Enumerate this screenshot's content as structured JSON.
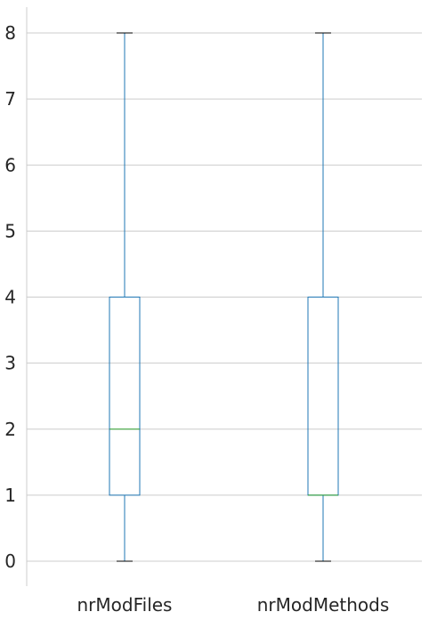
{
  "chart_data": {
    "type": "box",
    "title": "",
    "xlabel": "",
    "ylabel": "",
    "ylim": [
      -0.35,
      8.35
    ],
    "yticks": [
      0,
      1,
      2,
      3,
      4,
      5,
      6,
      7,
      8
    ],
    "grid": true,
    "colors": {
      "box": "#1f77b4",
      "whisker": "#1f77b4",
      "median": "#2ca02c",
      "cap": "#000000",
      "grid": "#cccccc",
      "text": "#262626"
    },
    "boxes": [
      {
        "label": "nrModFiles",
        "min": 0,
        "q1": 1,
        "median": 2,
        "q3": 4,
        "max": 8
      },
      {
        "label": "nrModMethods",
        "min": 0,
        "q1": 1,
        "median": 1,
        "q3": 4,
        "max": 8
      }
    ]
  }
}
